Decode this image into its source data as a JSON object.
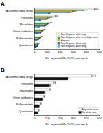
{
  "chart_data": [
    {
      "type": "bar",
      "orientation": "horizontal",
      "title": "A",
      "categories": [
        "All antimicrobial drugs",
        "Penicillins",
        "Macrolides",
        "Other antibiotics",
        "Sulfonamides",
        "Quinolones"
      ],
      "series": [
        {
          "name": "Non-Hispanic white only",
          "color": "#ffffff",
          "values": [
            480,
            170,
            130,
            80,
            55,
            38
          ],
          "errors": [
            15,
            8,
            7,
            5,
            4,
            3
          ]
        },
        {
          "name": "Non-Hispanic other or multiple race",
          "color": "#3a9e4f",
          "values": [
            390,
            140,
            110,
            65,
            45,
            30
          ],
          "errors": [
            12,
            7,
            6,
            5,
            4,
            3
          ]
        },
        {
          "name": "Hispanic",
          "color": "#e8c030",
          "values": [
            310,
            110,
            95,
            55,
            38,
            25
          ],
          "errors": [
            14,
            8,
            7,
            5,
            4,
            3
          ]
        },
        {
          "name": "Non-Hispanic black only",
          "color": "#2a6db5",
          "values": [
            280,
            95,
            85,
            48,
            32,
            22
          ],
          "errors": [
            13,
            7,
            6,
            4,
            3,
            2
          ]
        },
        {
          "name": "Non-Hispanic Asian only",
          "color": "#5bbfd4",
          "values": [
            120,
            45,
            35,
            22,
            15,
            10
          ],
          "errors": [
            10,
            5,
            4,
            3,
            3,
            2
          ]
        }
      ],
      "xlim": [
        0,
        500
      ],
      "xticks": [
        0,
        100,
        200,
        300,
        400,
        500
      ],
      "xlabel": "No. reported fills/1,000 persons/y",
      "legend": "lower right"
    },
    {
      "type": "bar",
      "orientation": "horizontal",
      "title": "B",
      "categories": [
        "All antimicrobial drugs",
        "Penicillins",
        "Macrolides",
        "Other antibiotics",
        "Sulfonamides",
        "Quinolones"
      ],
      "series": [
        {
          "name": "Any white race",
          "color": "#ffffff",
          "values": [
            460,
            155,
            122,
            72,
            50,
            34
          ],
          "errors": [
            14,
            7,
            6,
            5,
            4,
            3
          ]
        },
        {
          "name": "No white race",
          "color": "#111111",
          "values": [
            260,
            118,
            78,
            62,
            36,
            26
          ],
          "errors": [
            10,
            7,
            6,
            5,
            4,
            3
          ]
        }
      ],
      "xlim": [
        0,
        500
      ],
      "xticks": [
        0,
        100,
        200,
        300,
        400,
        500
      ],
      "xlabel": "No. reported fills/1,000 persons/y",
      "legend": "lower right"
    }
  ]
}
